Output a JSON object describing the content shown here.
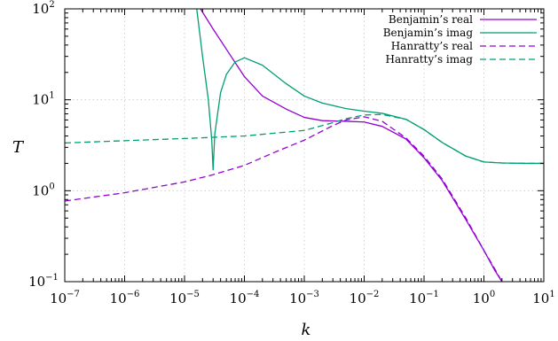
{
  "chart_data": {
    "type": "line",
    "xlabel": "k",
    "ylabel": "T",
    "xscale": "log",
    "yscale": "log",
    "xlim": [
      1e-07,
      10
    ],
    "ylim": [
      0.1,
      100
    ],
    "grid": true,
    "legend_position": "top-right",
    "x_tick_values": [
      1e-07,
      1e-06,
      1e-05,
      0.0001,
      0.001,
      0.01,
      0.1,
      1,
      10
    ],
    "x_tick_labels": [
      {
        "base": "10",
        "exp": "−7"
      },
      {
        "base": "10",
        "exp": "−6"
      },
      {
        "base": "10",
        "exp": "−5"
      },
      {
        "base": "10",
        "exp": "−4"
      },
      {
        "base": "10",
        "exp": "−3"
      },
      {
        "base": "10",
        "exp": "−2"
      },
      {
        "base": "10",
        "exp": "−1"
      },
      {
        "base": "10",
        "exp": "0"
      },
      {
        "base": "10",
        "exp": "1"
      }
    ],
    "y_tick_values": [
      0.1,
      1,
      10,
      100
    ],
    "y_tick_labels": [
      {
        "base": "10",
        "exp": "−1"
      },
      {
        "base": "10",
        "exp": "0"
      },
      {
        "base": "10",
        "exp": "1"
      },
      {
        "base": "10",
        "exp": "2"
      }
    ],
    "series": [
      {
        "name": "Benjamin’s real",
        "color": "#9400d3",
        "dash": "solid",
        "x": [
          1.85e-05,
          3e-05,
          5e-05,
          0.0001,
          0.0002,
          0.0005,
          0.001,
          0.002,
          0.005,
          0.01,
          0.02,
          0.05,
          0.1,
          0.2,
          0.5,
          1,
          1.5,
          2
        ],
        "y": [
          100,
          60,
          36,
          18,
          11,
          7.9,
          6.4,
          5.9,
          5.8,
          5.7,
          5.1,
          3.7,
          2.3,
          1.3,
          0.48,
          0.22,
          0.135,
          0.1
        ]
      },
      {
        "name": "Benjamin’s imag",
        "color": "#009e73",
        "dash": "solid",
        "x": [
          1.6e-05,
          2e-05,
          2.5e-05,
          2.85e-05,
          3e-05,
          3.2e-05,
          4e-05,
          5e-05,
          7e-05,
          0.0001,
          0.0002,
          0.0005,
          0.001,
          0.002,
          0.005,
          0.01,
          0.02,
          0.05,
          0.1,
          0.2,
          0.5,
          1,
          2,
          5,
          10
        ],
        "y": [
          100,
          30,
          10,
          3.6,
          1.7,
          4.2,
          12,
          19,
          26,
          29,
          24,
          15,
          11,
          9.2,
          8.0,
          7.5,
          7.1,
          6.1,
          4.7,
          3.4,
          2.4,
          2.07,
          2.02,
          2.0,
          2.0
        ]
      },
      {
        "name": "Hanratty’s real",
        "color": "#9400d3",
        "dash": "dashed",
        "x": [
          1e-07,
          1e-06,
          1e-05,
          3e-05,
          0.0001,
          0.0003,
          0.001,
          0.003,
          0.005,
          0.01,
          0.02,
          0.05,
          0.1,
          0.2,
          0.5,
          1,
          1.5,
          2
        ],
        "y": [
          0.77,
          0.95,
          1.25,
          1.5,
          1.9,
          2.6,
          3.6,
          5.2,
          6.0,
          6.5,
          5.8,
          3.8,
          2.4,
          1.35,
          0.5,
          0.22,
          0.14,
          0.1
        ]
      },
      {
        "name": "Hanratty’s imag",
        "color": "#009e73",
        "dash": "dashed",
        "x": [
          1e-07,
          1e-06,
          1e-05,
          0.0001,
          0.001,
          0.003,
          0.005,
          0.01,
          0.02,
          0.05,
          0.1,
          0.2,
          0.5,
          1,
          2,
          5,
          10
        ],
        "y": [
          3.35,
          3.55,
          3.75,
          4.0,
          4.6,
          5.6,
          6.2,
          6.8,
          6.9,
          6.1,
          4.7,
          3.4,
          2.4,
          2.07,
          2.02,
          2.0,
          2.0
        ]
      }
    ]
  }
}
